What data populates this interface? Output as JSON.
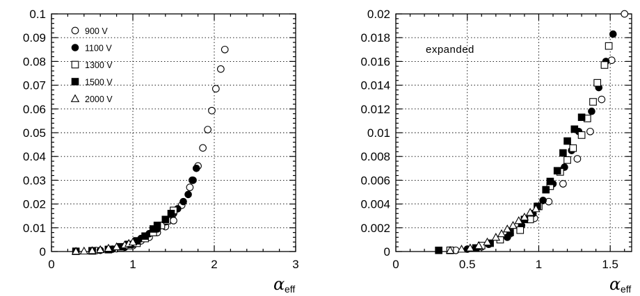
{
  "chart_data": [
    {
      "type": "scatter",
      "title": "",
      "xlabel": "α",
      "xlabel_subscript": "eff",
      "ylabel": "",
      "xlim": [
        0,
        3
      ],
      "ylim": [
        0,
        0.1
      ],
      "grid": true,
      "legend_position": "top-left",
      "x_ticks": [
        0,
        1,
        2,
        3
      ],
      "x_tick_labels": [
        "0",
        "1",
        "2",
        "3"
      ],
      "y_ticks": [
        0,
        0.01,
        0.02,
        0.03,
        0.04,
        0.05,
        0.06,
        0.07,
        0.08,
        0.09,
        0.1
      ],
      "y_tick_labels": [
        "0",
        "0.01",
        "0.02",
        "0.03",
        "0.04",
        "0.05",
        "0.06",
        "0.07",
        "0.08",
        "0.09",
        "0.1"
      ],
      "series": [
        {
          "name": "900 V",
          "marker": "open-circle",
          "points": [
            [
              0.55,
              0.0004
            ],
            [
              0.8,
              0.0012
            ],
            [
              1.0,
              0.0025
            ],
            [
              1.1,
              0.0045
            ],
            [
              1.2,
              0.006
            ],
            [
              1.3,
              0.008
            ],
            [
              1.4,
              0.0105
            ],
            [
              1.5,
              0.013
            ],
            [
              1.6,
              0.0195
            ],
            [
              1.7,
              0.027
            ],
            [
              1.73,
              0.03
            ],
            [
              1.8,
              0.036
            ],
            [
              1.86,
              0.0436
            ],
            [
              1.92,
              0.0513
            ],
            [
              1.97,
              0.0593
            ],
            [
              2.02,
              0.0685
            ],
            [
              2.08,
              0.0768
            ],
            [
              2.13,
              0.085
            ]
          ]
        },
        {
          "name": "1100 V",
          "marker": "filled-circle",
          "points": [
            [
              0.6,
              0.0005
            ],
            [
              0.75,
              0.001
            ],
            [
              0.9,
              0.0018
            ],
            [
              1.0,
              0.003
            ],
            [
              1.1,
              0.0055
            ],
            [
              1.15,
              0.0065
            ],
            [
              1.2,
              0.0075
            ],
            [
              1.3,
              0.0095
            ],
            [
              1.4,
              0.0125
            ],
            [
              1.5,
              0.016
            ],
            [
              1.55,
              0.018
            ],
            [
              1.62,
              0.021
            ],
            [
              1.68,
              0.024
            ],
            [
              1.74,
              0.03
            ],
            [
              1.78,
              0.035
            ]
          ]
        },
        {
          "name": "1300 V",
          "marker": "open-square",
          "points": [
            [
              0.5,
              0.0003
            ],
            [
              0.7,
              0.0008
            ],
            [
              0.85,
              0.0015
            ],
            [
              0.95,
              0.0025
            ],
            [
              1.05,
              0.0035
            ],
            [
              1.15,
              0.0055
            ],
            [
              1.25,
              0.008
            ],
            [
              1.35,
              0.011
            ],
            [
              1.42,
              0.013
            ],
            [
              1.48,
              0.0158
            ],
            [
              1.5,
              0.0173
            ]
          ]
        },
        {
          "name": "1500 V",
          "marker": "filled-square",
          "points": [
            [
              0.3,
              0.0001
            ],
            [
              0.5,
              0.0003
            ],
            [
              0.7,
              0.0009
            ],
            [
              0.85,
              0.002
            ],
            [
              0.95,
              0.003
            ],
            [
              1.05,
              0.0045
            ],
            [
              1.15,
              0.0065
            ],
            [
              1.25,
              0.0095
            ],
            [
              1.3,
              0.011
            ],
            [
              1.4,
              0.0135
            ],
            [
              1.47,
              0.016
            ]
          ]
        },
        {
          "name": "2000 V",
          "marker": "open-triangle",
          "points": [
            [
              0.3,
              0.0001
            ],
            [
              0.4,
              0.0002
            ],
            [
              0.5,
              0.0004
            ],
            [
              0.6,
              0.0008
            ],
            [
              0.7,
              0.0014
            ],
            [
              0.8,
              0.002
            ],
            [
              0.9,
              0.0028
            ],
            [
              0.95,
              0.0034
            ],
            [
              1.0,
              0.004
            ]
          ]
        }
      ]
    },
    {
      "type": "scatter",
      "title": "",
      "annotation": "expanded",
      "xlabel": "α",
      "xlabel_subscript": "eff",
      "ylabel": "",
      "xlim": [
        0,
        1.65
      ],
      "ylim": [
        0,
        0.02
      ],
      "grid": true,
      "x_ticks": [
        0,
        0.5,
        1,
        1.5
      ],
      "x_tick_labels": [
        "0",
        "0.5",
        "1",
        "1.5"
      ],
      "y_ticks": [
        0,
        0.002,
        0.004,
        0.006,
        0.008,
        0.01,
        0.012,
        0.014,
        0.016,
        0.018,
        0.02
      ],
      "y_tick_labels": [
        "0",
        "0.002",
        "0.004",
        "0.006",
        "0.008",
        "0.01",
        "0.012",
        "0.014",
        "0.016",
        "0.018",
        "0.02"
      ],
      "series": [
        {
          "name": "900 V",
          "marker": "open-circle",
          "points": [
            [
              0.42,
              0.0001
            ],
            [
              0.6,
              0.0004
            ],
            [
              0.8,
              0.0015
            ],
            [
              0.97,
              0.0028
            ],
            [
              1.07,
              0.0042
            ],
            [
              1.17,
              0.0057
            ],
            [
              1.27,
              0.0078
            ],
            [
              1.36,
              0.0101
            ],
            [
              1.44,
              0.0128
            ],
            [
              1.51,
              0.0161
            ],
            [
              1.6,
              0.02
            ]
          ]
        },
        {
          "name": "1100 V",
          "marker": "filled-circle",
          "points": [
            [
              0.5,
              0.0002
            ],
            [
              0.65,
              0.0006
            ],
            [
              0.78,
              0.0012
            ],
            [
              0.88,
              0.0022
            ],
            [
              0.96,
              0.0032
            ],
            [
              1.03,
              0.0043
            ],
            [
              1.1,
              0.0057
            ],
            [
              1.18,
              0.0071
            ],
            [
              1.23,
              0.0085
            ],
            [
              1.28,
              0.0101
            ],
            [
              1.37,
              0.0118
            ],
            [
              1.42,
              0.0138
            ],
            [
              1.47,
              0.016
            ],
            [
              1.52,
              0.0183
            ]
          ]
        },
        {
          "name": "1300 V",
          "marker": "open-square",
          "points": [
            [
              0.38,
              0.0001
            ],
            [
              0.6,
              0.0005
            ],
            [
              0.73,
              0.001
            ],
            [
              0.87,
              0.0018
            ],
            [
              0.94,
              0.0027
            ],
            [
              1.0,
              0.0038
            ],
            [
              1.08,
              0.0055
            ],
            [
              1.15,
              0.0067
            ],
            [
              1.2,
              0.0077
            ],
            [
              1.24,
              0.0087
            ],
            [
              1.3,
              0.0098
            ],
            [
              1.34,
              0.0112
            ],
            [
              1.38,
              0.0126
            ],
            [
              1.41,
              0.0142
            ],
            [
              1.46,
              0.0157
            ],
            [
              1.49,
              0.0173
            ]
          ]
        },
        {
          "name": "1500 V",
          "marker": "filled-square",
          "points": [
            [
              0.3,
              0.0001
            ],
            [
              0.56,
              0.0003
            ],
            [
              0.66,
              0.0007
            ],
            [
              0.8,
              0.0016
            ],
            [
              0.9,
              0.0027
            ],
            [
              0.99,
              0.0038
            ],
            [
              1.05,
              0.0052
            ],
            [
              1.08,
              0.0059
            ],
            [
              1.13,
              0.0068
            ],
            [
              1.17,
              0.0083
            ],
            [
              1.2,
              0.0093
            ],
            [
              1.25,
              0.0103
            ],
            [
              1.3,
              0.0113
            ]
          ]
        },
        {
          "name": "2000 V",
          "marker": "open-triangle",
          "points": [
            [
              0.38,
              0.0001
            ],
            [
              0.46,
              0.0002
            ],
            [
              0.52,
              0.0003
            ],
            [
              0.58,
              0.0005
            ],
            [
              0.64,
              0.0008
            ],
            [
              0.7,
              0.0012
            ],
            [
              0.74,
              0.0015
            ],
            [
              0.78,
              0.0019
            ],
            [
              0.82,
              0.0022
            ],
            [
              0.86,
              0.0026
            ],
            [
              0.9,
              0.0029
            ],
            [
              0.94,
              0.0033
            ],
            [
              0.98,
              0.0036
            ]
          ]
        }
      ]
    }
  ]
}
